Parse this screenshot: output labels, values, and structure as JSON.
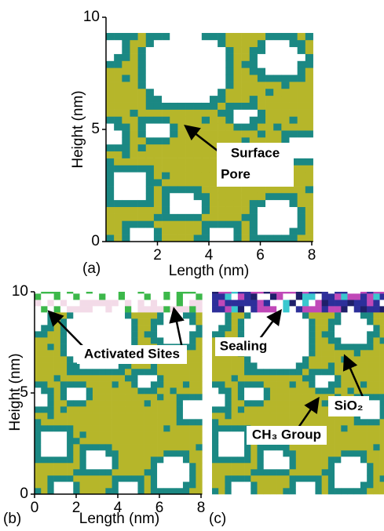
{
  "panels": [
    {
      "label": "(a)",
      "x_label": "Length (nm)",
      "y_label": "Height (nm)",
      "xticks": [
        2,
        4,
        6,
        8
      ],
      "yticks": [
        0,
        5,
        10
      ],
      "annotations": [
        "Surface",
        "Pore"
      ]
    },
    {
      "label": "(b)",
      "x_label": "Length (nm)",
      "y_label": "Height (nm)",
      "xticks": [
        0,
        2,
        4,
        6,
        8
      ],
      "yticks": [
        0,
        5,
        10
      ],
      "annotations": [
        "Activated Sites"
      ]
    },
    {
      "label": "(c)",
      "annotations": [
        "Sealing",
        "SiO₂",
        "CH₃ Group"
      ]
    }
  ]
}
